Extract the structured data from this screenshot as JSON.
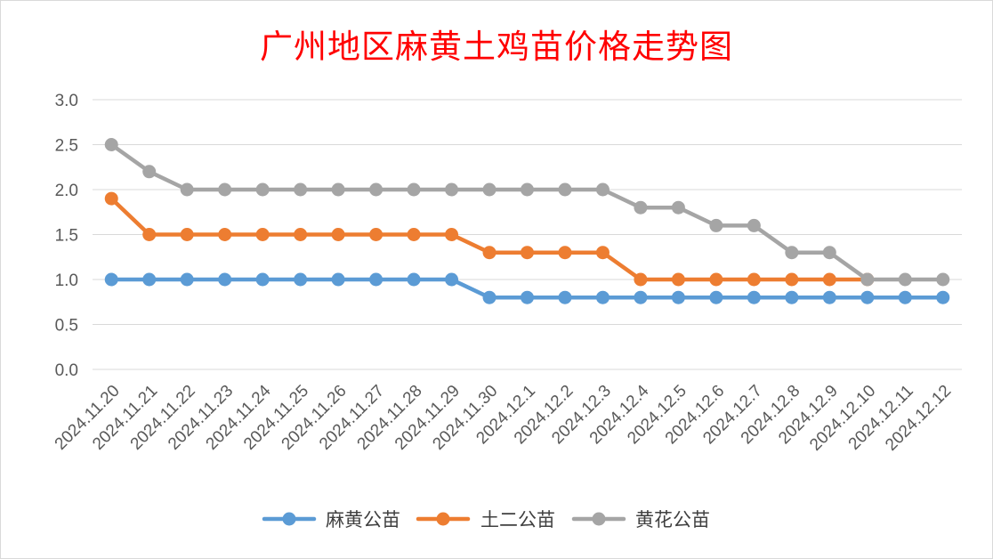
{
  "chart_data": {
    "type": "line",
    "title": "广州地区麻黄土鸡苗价格走势图",
    "xlabel": "",
    "ylabel": "",
    "ylim": [
      0,
      3.0
    ],
    "yticks": [
      "0.0",
      "0.5",
      "1.0",
      "1.5",
      "2.0",
      "2.5",
      "3.0"
    ],
    "grid": true,
    "legend_position": "bottom",
    "categories": [
      "2024.11.20",
      "2024.11.21",
      "2024.11.22",
      "2024.11.23",
      "2024.11.24",
      "2024.11.25",
      "2024.11.26",
      "2024.11.27",
      "2024.11.28",
      "2024.11.29",
      "2024.11.30",
      "2024.12.1",
      "2024.12.2",
      "2024.12.3",
      "2024.12.4",
      "2024.12.5",
      "2024.12.6",
      "2024.12.7",
      "2024.12.8",
      "2024.12.9",
      "2024.12.10",
      "2024.12.11",
      "2024.12.12"
    ],
    "series": [
      {
        "name": "麻黄公苗",
        "color": "#5b9bd5",
        "values": [
          1.0,
          1.0,
          1.0,
          1.0,
          1.0,
          1.0,
          1.0,
          1.0,
          1.0,
          1.0,
          0.8,
          0.8,
          0.8,
          0.8,
          0.8,
          0.8,
          0.8,
          0.8,
          0.8,
          0.8,
          0.8,
          0.8,
          0.8
        ]
      },
      {
        "name": "土二公苗",
        "color": "#ed7d31",
        "values": [
          1.9,
          1.5,
          1.5,
          1.5,
          1.5,
          1.5,
          1.5,
          1.5,
          1.5,
          1.5,
          1.3,
          1.3,
          1.3,
          1.3,
          1.0,
          1.0,
          1.0,
          1.0,
          1.0,
          1.0,
          1.0,
          null,
          null
        ]
      },
      {
        "name": "黄花公苗",
        "color": "#a5a5a5",
        "values": [
          2.5,
          2.2,
          2.0,
          2.0,
          2.0,
          2.0,
          2.0,
          2.0,
          2.0,
          2.0,
          2.0,
          2.0,
          2.0,
          2.0,
          1.8,
          1.8,
          1.6,
          1.6,
          1.3,
          1.3,
          1.0,
          1.0,
          1.0
        ]
      }
    ]
  }
}
